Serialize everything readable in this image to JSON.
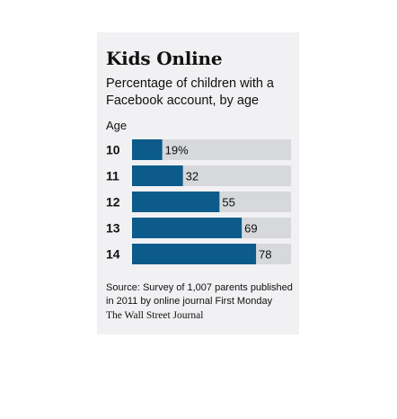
{
  "title": "Kids Online",
  "subtitle": "Percentage of children with a Facebook account, by age",
  "source": "Source: Survey of 1,007 parents published in 2011 by online journal First Monday",
  "credit": "The Wall Street Journal",
  "colors": {
    "bar": "#0c5b8a",
    "track": "#d6d8db",
    "panel": "#f1f1f3"
  },
  "chart_data": {
    "type": "bar",
    "orientation": "horizontal",
    "ylabel": "Age",
    "categories": [
      "10",
      "11",
      "12",
      "13",
      "14"
    ],
    "values": [
      19,
      32,
      55,
      69,
      78
    ],
    "value_labels": [
      "19%",
      "32",
      "55",
      "69",
      "78"
    ],
    "xlim": [
      0,
      100
    ],
    "grid": false
  }
}
